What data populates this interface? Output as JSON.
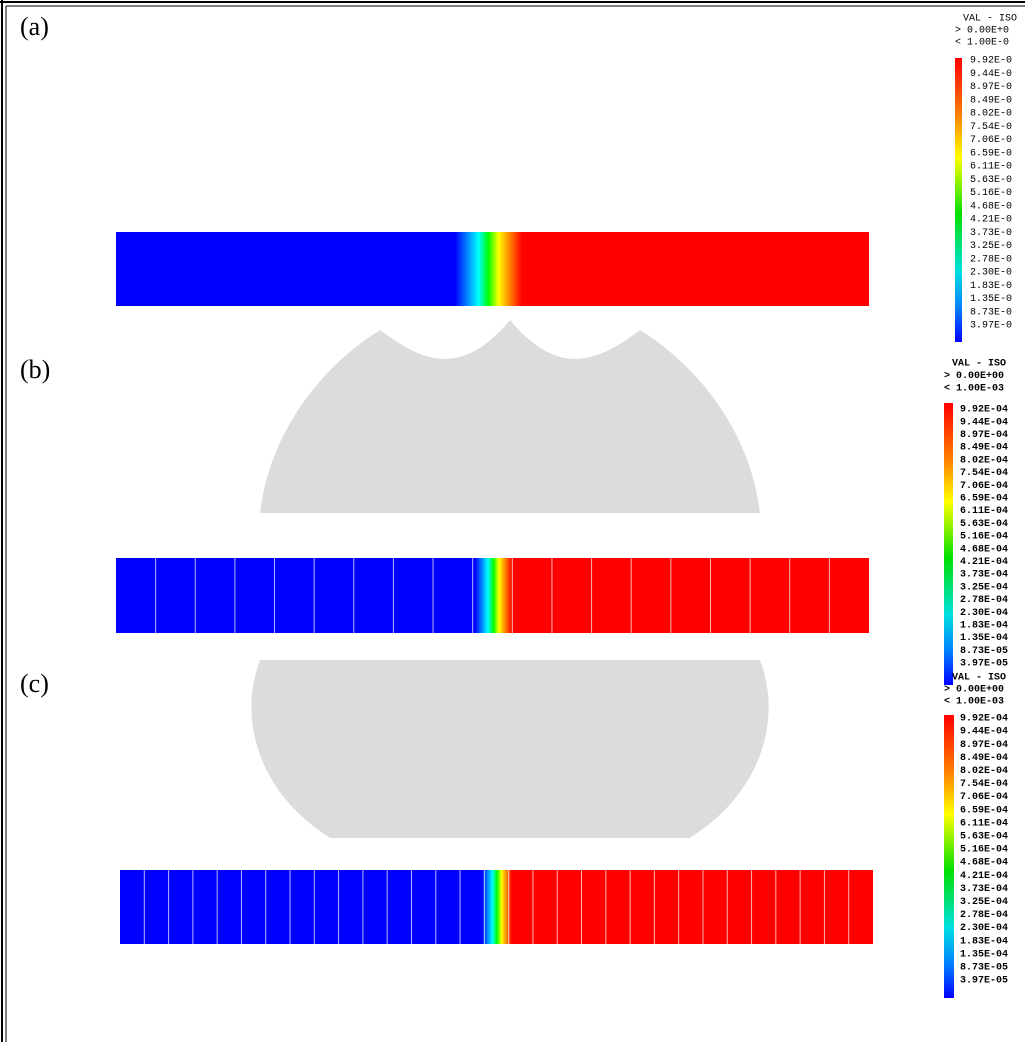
{
  "panels": [
    {
      "label": "(a)",
      "legend": {
        "title": "VAL - ISO",
        "range": [
          "> 0.00E+0",
          "< 1.00E-0"
        ],
        "levels": [
          "9.92E-0",
          "9.44E-0",
          "8.97E-0",
          "8.49E-0",
          "8.02E-0",
          "7.54E-0",
          "7.06E-0",
          "6.59E-0",
          "6.11E-0",
          "5.63E-0",
          "5.16E-0",
          "4.68E-0",
          "4.21E-0",
          "3.73E-0",
          "3.25E-0",
          "2.78E-0",
          "2.30E-0",
          "1.83E-0",
          "1.35E-0",
          "8.73E-0",
          "3.97E-0"
        ]
      }
    },
    {
      "label": "(b)",
      "legend": {
        "title": "VAL - ISO",
        "range": [
          "> 0.00E+00",
          "< 1.00E-03"
        ],
        "levels": [
          "9.92E-04",
          "9.44E-04",
          "8.97E-04",
          "8.49E-04",
          "8.02E-04",
          "7.54E-04",
          "7.06E-04",
          "6.59E-04",
          "6.11E-04",
          "5.63E-04",
          "5.16E-04",
          "4.68E-04",
          "4.21E-04",
          "3.73E-04",
          "3.25E-04",
          "2.78E-04",
          "2.30E-04",
          "1.83E-04",
          "1.35E-04",
          "8.73E-05",
          "3.97E-05"
        ]
      }
    },
    {
      "label": "(c)",
      "legend": {
        "title": "VAL - ISO",
        "range": [
          "> 0.00E+00",
          "< 1.00E-03"
        ],
        "levels": [
          "9.92E-04",
          "9.44E-04",
          "8.97E-04",
          "8.49E-04",
          "8.02E-04",
          "7.54E-04",
          "7.06E-04",
          "6.59E-04",
          "6.11E-04",
          "5.63E-04",
          "5.16E-04",
          "4.68E-04",
          "4.21E-04",
          "3.73E-04",
          "3.25E-04",
          "2.78E-04",
          "2.30E-04",
          "1.83E-04",
          "1.35E-04",
          "8.73E-05",
          "3.97E-05"
        ]
      }
    }
  ]
}
